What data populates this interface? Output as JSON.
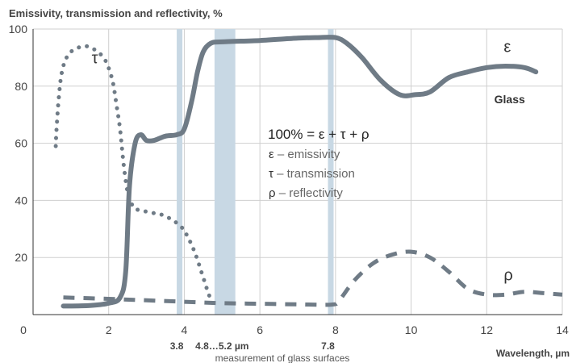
{
  "chart_data": {
    "type": "line",
    "title": "Emissivity, transmission and reflectivity, %",
    "xlabel": "Wavelength, µm",
    "ylabel": "",
    "xlim": [
      0,
      14
    ],
    "ylim": [
      0,
      100
    ],
    "x_ticks": [
      0,
      2,
      4,
      6,
      8,
      10,
      12,
      14
    ],
    "y_ticks": [
      0,
      20,
      40,
      60,
      80,
      100
    ],
    "grid": true,
    "highlight_bands": [
      {
        "from": 3.8,
        "to": 3.95,
        "color": "#c8d8e4"
      },
      {
        "from": 4.8,
        "to": 5.35,
        "color": "#c8d8e4"
      },
      {
        "from": 7.8,
        "to": 7.95,
        "color": "#c8d8e4"
      }
    ],
    "band_labels": [
      {
        "text": "3.8",
        "at": 3.8
      },
      {
        "text": "4.8…5.2 µm",
        "at": 5.0
      },
      {
        "text": "7.8",
        "at": 7.8
      }
    ],
    "band_note": "measurement of glass surfaces",
    "series": [
      {
        "name": "ε",
        "style": "solid",
        "color": "#6f7b86",
        "x": [
          0.8,
          1.5,
          2.0,
          2.3,
          2.45,
          2.55,
          2.7,
          2.85,
          3.0,
          3.2,
          3.5,
          3.8,
          4.0,
          4.2,
          4.35,
          4.5,
          4.7,
          5.0,
          6.0,
          7.0,
          7.5,
          8.0,
          8.3,
          8.7,
          9.2,
          9.7,
          10.1,
          10.5,
          11.0,
          11.5,
          12.0,
          12.5,
          13.0,
          13.3
        ],
        "y": [
          3,
          3.2,
          4,
          6,
          15,
          45,
          60,
          63,
          61,
          61,
          62.5,
          63,
          65,
          75,
          85,
          92,
          95,
          95.5,
          96,
          96.8,
          97,
          97,
          95,
          90,
          82,
          77,
          77,
          78,
          83,
          85,
          86.5,
          87,
          86.5,
          85
        ]
      },
      {
        "name": "τ",
        "style": "dotted",
        "color": "#6f7b86",
        "x": [
          0.6,
          0.62,
          0.68,
          0.75,
          0.85,
          1.0,
          1.2,
          1.4,
          1.6,
          1.8,
          1.95,
          2.1,
          2.2,
          2.3,
          2.4,
          2.5,
          2.6,
          2.65,
          2.7,
          2.85,
          3.2,
          3.5,
          3.9,
          4.1,
          4.3,
          4.5,
          4.65,
          4.75,
          4.82
        ],
        "y": [
          59,
          65,
          76,
          84,
          89,
          92,
          93.5,
          94,
          93,
          91,
          88,
          82,
          74,
          65,
          52,
          43,
          39,
          38,
          37,
          36.5,
          35.5,
          34.5,
          31,
          27,
          21,
          13,
          7,
          4,
          2
        ]
      },
      {
        "name": "ρ",
        "style": "dashed",
        "color": "#6f7b86",
        "x": [
          0.8,
          2.0,
          3.0,
          4.0,
          5.0,
          6.0,
          7.0,
          7.9,
          8.1,
          8.5,
          9.0,
          9.5,
          10.0,
          10.5,
          11.0,
          11.5,
          12.0,
          12.5,
          13.0,
          13.5,
          14.0
        ],
        "y": [
          6,
          5.5,
          5,
          4.5,
          4,
          3.8,
          3.6,
          3.5,
          5,
          12,
          18,
          21,
          22,
          20,
          15,
          9,
          7,
          7,
          8,
          7.5,
          7
        ]
      }
    ],
    "series_labels": [
      {
        "text": "τ",
        "x": 1.55,
        "y": 88
      },
      {
        "text": "ε",
        "x": 12.45,
        "y": 92
      },
      {
        "text": "Glass",
        "x": 12.2,
        "y": 74
      },
      {
        "text": "ρ",
        "x": 12.45,
        "y": 12
      }
    ],
    "annotation": {
      "formula": "100% = ε + τ + ρ",
      "lines": [
        {
          "symbol": "ε",
          "text": " – emissivity"
        },
        {
          "symbol": "τ",
          "text": " – transmission"
        },
        {
          "symbol": "ρ",
          "text": " – reflectivity"
        }
      ]
    }
  }
}
